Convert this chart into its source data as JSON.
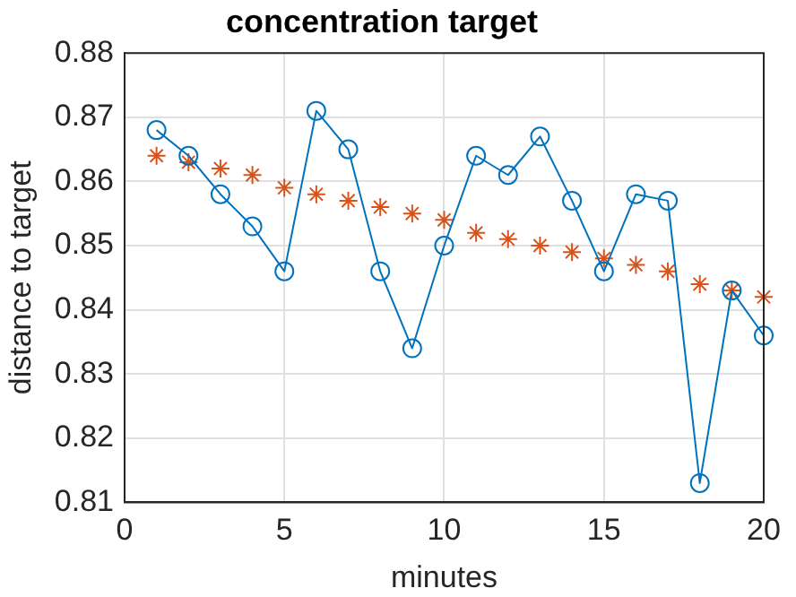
{
  "chart_data": {
    "type": "line",
    "title": "concentration target",
    "xlabel": "minutes",
    "ylabel": "distance to target",
    "x": [
      1,
      2,
      3,
      4,
      5,
      6,
      7,
      8,
      9,
      10,
      11,
      12,
      13,
      14,
      15,
      16,
      17,
      18,
      19,
      20
    ],
    "series": [
      {
        "color": "#0072bd",
        "marker": "circle",
        "line_style": "solid",
        "values": [
          0.868,
          0.864,
          0.858,
          0.853,
          0.846,
          0.871,
          0.865,
          0.846,
          0.834,
          0.85,
          0.864,
          0.861,
          0.867,
          0.857,
          0.846,
          0.858,
          0.857,
          0.813,
          0.843,
          0.836
        ]
      },
      {
        "type": "scatter",
        "color": "#d95319",
        "marker": "cross",
        "values": [
          0.864,
          0.863,
          0.862,
          0.861,
          0.859,
          0.858,
          0.857,
          0.856,
          0.855,
          0.854,
          0.852,
          0.851,
          0.85,
          0.849,
          0.848,
          0.847,
          0.846,
          0.844,
          0.843,
          0.842
        ]
      }
    ],
    "xlim": [
      0,
      20
    ],
    "xticks": [
      0,
      5,
      10,
      15,
      20
    ],
    "ylim": [
      0.81,
      0.88
    ],
    "yticks": [
      0.81,
      0.82,
      0.83,
      0.84,
      0.85,
      0.86,
      0.87,
      0.88
    ],
    "grid": true,
    "legend": false
  }
}
